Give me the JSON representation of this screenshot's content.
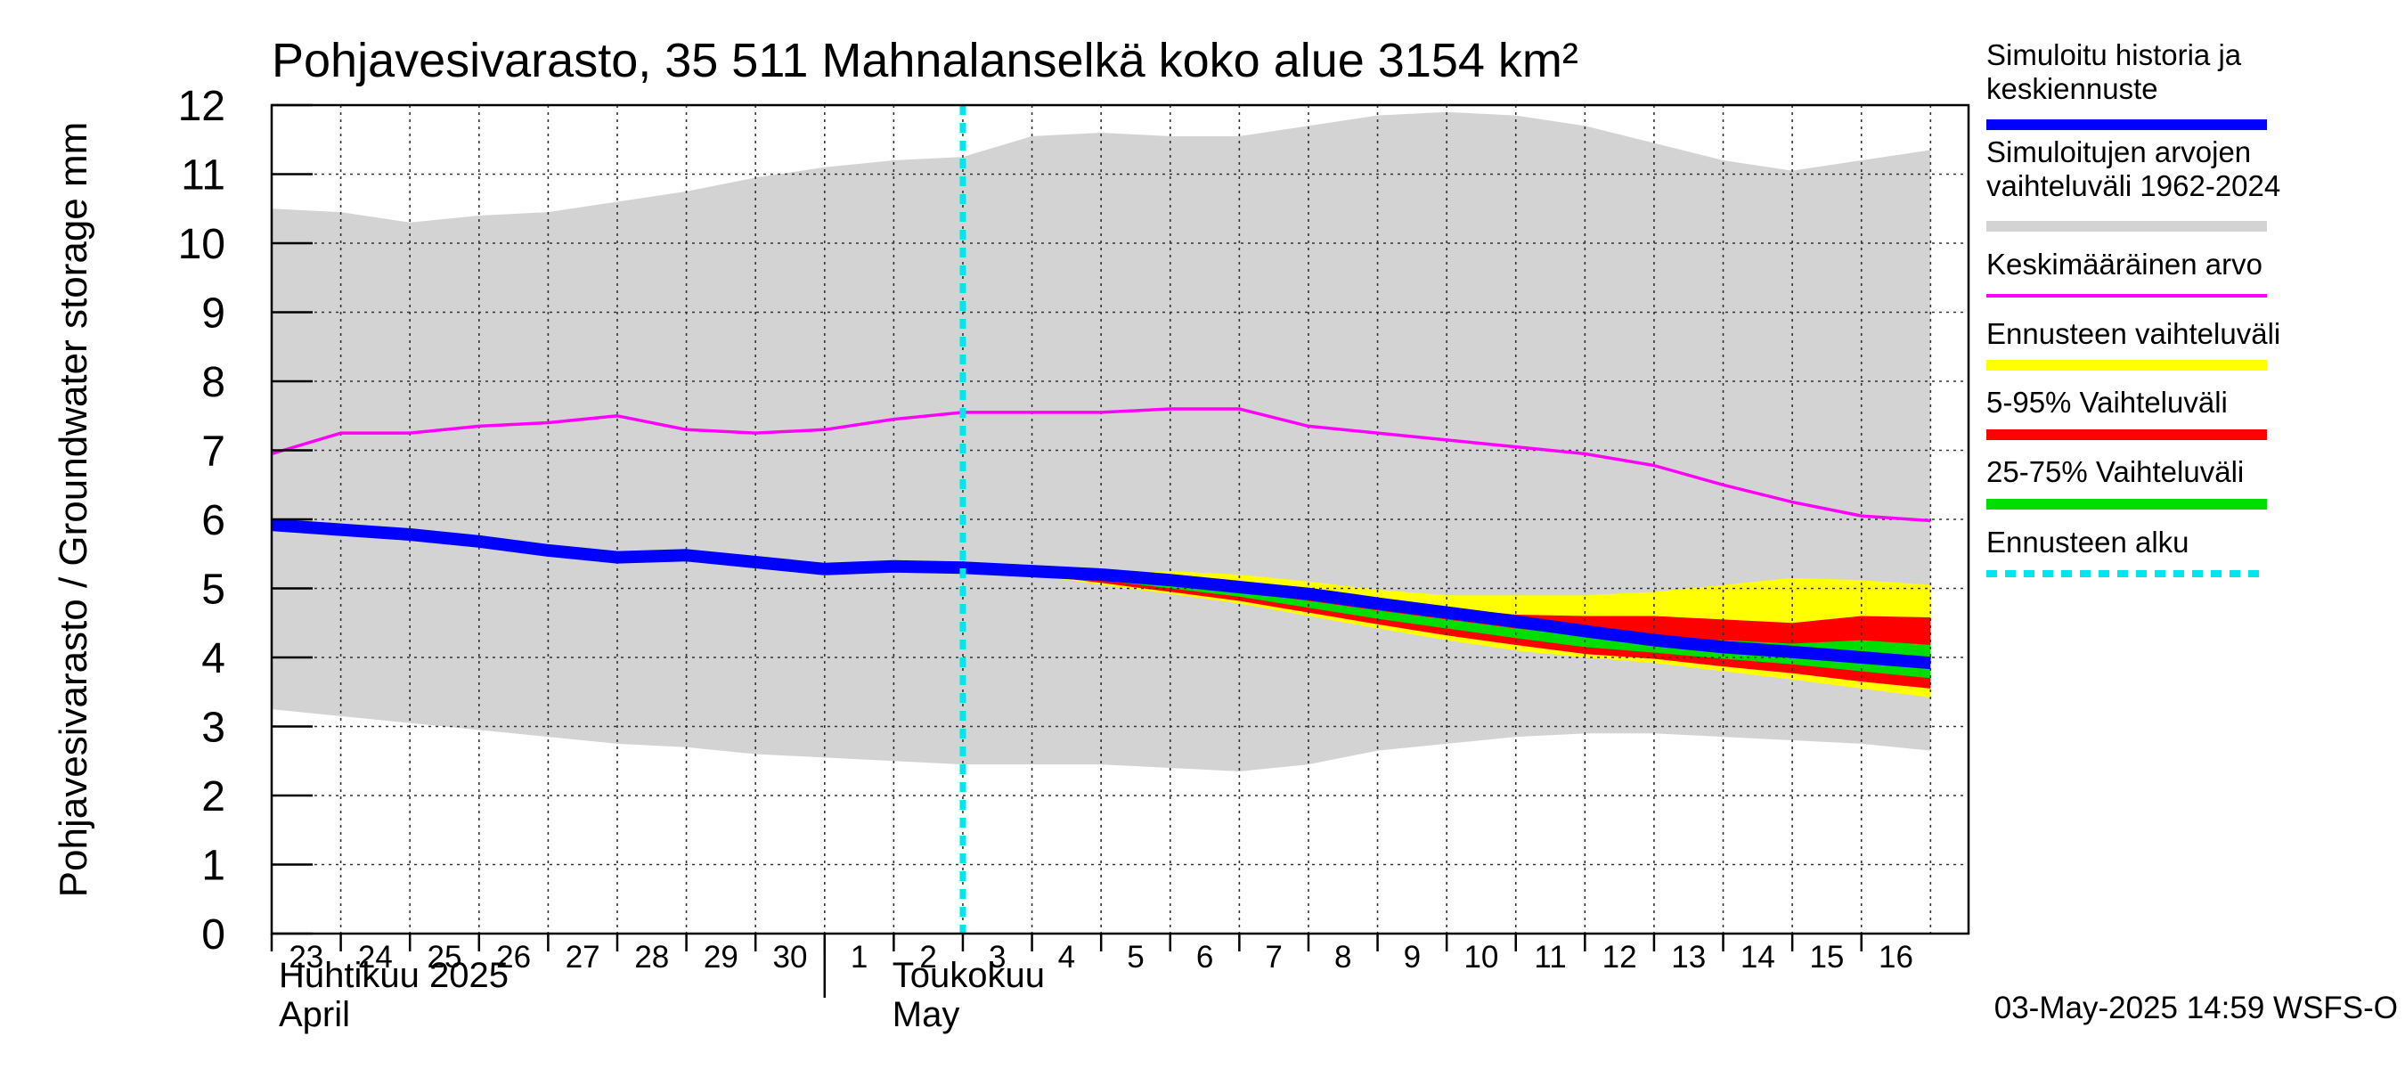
{
  "chart_data": {
    "type": "line",
    "title": "Pohjavesivarasto, 35 511 Mahnalanselkä koko alue 3154 km²",
    "ylabel": "Pohjavesivarasto / Groundwater storage   mm",
    "ylim": [
      0,
      12
    ],
    "yticks": [
      "0",
      "1",
      "2",
      "3",
      "4",
      "5",
      "6",
      "7",
      "8",
      "9",
      "10",
      "11",
      "12"
    ],
    "x_day_labels": [
      "23",
      "24",
      "25",
      "26",
      "27",
      "28",
      "29",
      "30",
      "1",
      "2",
      "3",
      "4",
      "5",
      "6",
      "7",
      "8",
      "9",
      "10",
      "11",
      "12",
      "13",
      "14",
      "15",
      "16"
    ],
    "month_labels": [
      {
        "line1": "Huhtikuu  2025",
        "line2": "April"
      },
      {
        "line1": "Toukokuu",
        "line2": "May"
      }
    ],
    "forecast_start_day": "3",
    "grid": true,
    "legend_position": "right",
    "x": [
      "2025-04-23",
      "2025-04-24",
      "2025-04-25",
      "2025-04-26",
      "2025-04-27",
      "2025-04-28",
      "2025-04-29",
      "2025-04-30",
      "2025-05-01",
      "2025-05-02",
      "2025-05-03",
      "2025-05-04",
      "2025-05-05",
      "2025-05-06",
      "2025-05-07",
      "2025-05-08",
      "2025-05-09",
      "2025-05-10",
      "2025-05-11",
      "2025-05-12",
      "2025-05-13",
      "2025-05-14",
      "2025-05-15",
      "2025-05-16",
      "2025-05-17"
    ],
    "series": [
      {
        "name": "Simuloitujen arvojen vaihteluväli 1962-2024",
        "kind": "band",
        "color": "#d3d3d3",
        "upper": [
          10.5,
          10.45,
          10.3,
          10.4,
          10.45,
          10.6,
          10.75,
          10.95,
          11.1,
          11.2,
          11.25,
          11.55,
          11.6,
          11.55,
          11.55,
          11.7,
          11.85,
          11.9,
          11.85,
          11.7,
          11.45,
          11.2,
          11.05,
          11.2,
          11.35
        ],
        "lower": [
          3.25,
          3.15,
          3.05,
          2.95,
          2.85,
          2.75,
          2.7,
          2.6,
          2.55,
          2.5,
          2.45,
          2.45,
          2.45,
          2.4,
          2.35,
          2.45,
          2.65,
          2.75,
          2.85,
          2.9,
          2.9,
          2.85,
          2.8,
          2.75,
          2.65
        ]
      },
      {
        "name": "Ennusteen vaihteluväli",
        "kind": "band",
        "color": "#ffff00",
        "start_index": 10,
        "upper": [
          5.28,
          5.22,
          5.22,
          5.25,
          5.2,
          5.1,
          4.98,
          4.9,
          4.9,
          4.9,
          4.95,
          5.05,
          5.15,
          5.12,
          5.05
        ],
        "lower": [
          5.28,
          5.2,
          5.05,
          4.92,
          4.78,
          4.6,
          4.42,
          4.25,
          4.1,
          4.0,
          3.92,
          3.8,
          3.68,
          3.55,
          3.42
        ]
      },
      {
        "name": "5-95% Vaihteluväli",
        "kind": "band",
        "color": "#ff0000",
        "start_index": 10,
        "upper": [
          5.28,
          5.21,
          5.18,
          5.12,
          5.05,
          4.95,
          4.82,
          4.72,
          4.62,
          4.6,
          4.6,
          4.55,
          4.5,
          4.6,
          4.58
        ],
        "lower": [
          5.28,
          5.2,
          5.08,
          4.95,
          4.82,
          4.65,
          4.48,
          4.32,
          4.18,
          4.05,
          3.98,
          3.87,
          3.77,
          3.65,
          3.55
        ]
      },
      {
        "name": "25-75% Vaihteluväli",
        "kind": "band",
        "color": "#00dd00",
        "start_index": 10,
        "upper": [
          5.28,
          5.2,
          5.14,
          5.05,
          4.95,
          4.82,
          4.68,
          4.55,
          4.42,
          4.32,
          4.28,
          4.25,
          4.2,
          4.25,
          4.18
        ],
        "lower": [
          5.28,
          5.2,
          5.12,
          5.0,
          4.88,
          4.72,
          4.56,
          4.42,
          4.28,
          4.15,
          4.07,
          3.98,
          3.9,
          3.8,
          3.7
        ]
      },
      {
        "name": "Keskimääräinen arvo",
        "kind": "line",
        "color": "#ff00ff",
        "values": [
          6.95,
          7.25,
          7.25,
          7.35,
          7.4,
          7.5,
          7.3,
          7.25,
          7.3,
          7.45,
          7.55,
          7.55,
          7.55,
          7.6,
          7.6,
          7.35,
          7.25,
          7.15,
          7.05,
          6.95,
          6.78,
          6.5,
          6.25,
          6.05,
          5.98
        ]
      },
      {
        "name": "Simuloitu historia ja keskiennuste",
        "kind": "line",
        "color": "#0000ff",
        "values": [
          5.92,
          5.85,
          5.78,
          5.68,
          5.55,
          5.45,
          5.48,
          5.38,
          5.28,
          5.32,
          5.3,
          5.25,
          5.2,
          5.12,
          5.02,
          4.92,
          4.78,
          4.65,
          4.52,
          4.38,
          4.25,
          4.15,
          4.08,
          4.0,
          3.92
        ]
      },
      {
        "name": "Ennusteen alku",
        "kind": "vline",
        "color": "#00e5ee",
        "x": "2025-05-03"
      }
    ]
  },
  "legend": [
    {
      "label": "Simuloitu historia ja keskiennuste",
      "color": "#0000ff",
      "style": "thick"
    },
    {
      "label": "Simuloitujen arvojen vaihteluväli 1962-2024",
      "color": "#d3d3d3",
      "style": "thick"
    },
    {
      "label": "Keskimääräinen arvo",
      "color": "#ff00ff",
      "style": "thin"
    },
    {
      "label": "Ennusteen vaihteluväli",
      "color": "#ffff00",
      "style": "thick"
    },
    {
      "label": "5-95% Vaihteluväli",
      "color": "#ff0000",
      "style": "thick"
    },
    {
      "label": "25-75% Vaihteluväli",
      "color": "#00dd00",
      "style": "thick"
    },
    {
      "label": "Ennusteen alku",
      "color": "#00e5ee",
      "style": "dashed"
    }
  ],
  "footer": "03-May-2025 14:59 WSFS-O"
}
